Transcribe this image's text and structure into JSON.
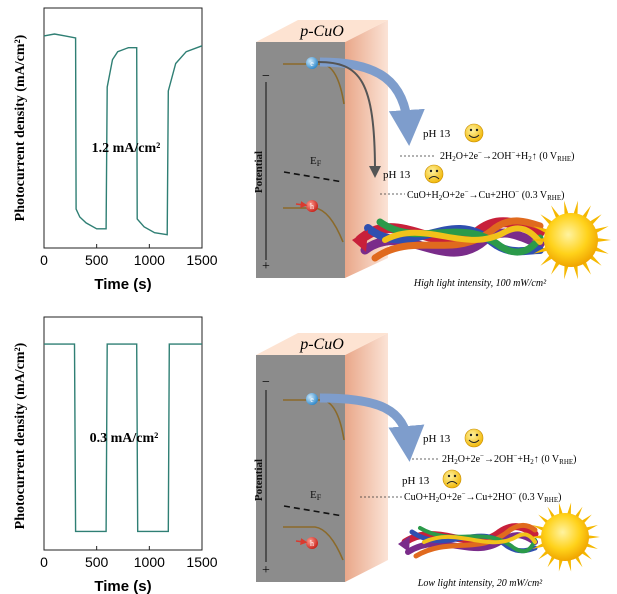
{
  "colors": {
    "trace": "#2f7f74",
    "band": "#8b6a2a",
    "arrow": "#7e9dcc",
    "panel_front": "#8a8a8a",
    "panel_side": "#f0b89a",
    "electron": "#4aa3df",
    "hole": "#d93a2f",
    "sun": "#f5b800"
  },
  "top_panel": {
    "photocurrent_label": "1.2 mA/cm²",
    "material": "p-CuO",
    "fermi_label": "E_F",
    "potential_label": "Potential",
    "minus_sign": "−",
    "plus_sign": "+",
    "electron_label": "e",
    "hole_label": "h",
    "ph_good": "pH 13",
    "ph_bad": "pH 13",
    "reaction_good": "2H₂O+2e⁻→2OH⁻+H₂↑ (0 V_RHE)",
    "reaction_bad": "CuO+H₂O+2e⁻→Cu+2HO⁻ (0.3 V_RHE)",
    "light_label": "High light intensity, 100 mW/cm²",
    "smiley_good": "happy-face-icon",
    "smiley_bad": "sad-face-icon"
  },
  "bottom_panel": {
    "photocurrent_label": "0.3 mA/cm²",
    "material": "p-CuO",
    "fermi_label": "E_F",
    "potential_label": "Potential",
    "minus_sign": "−",
    "plus_sign": "+",
    "electron_label": "e",
    "hole_label": "h",
    "ph_good": "pH 13",
    "ph_bad": "pH 13",
    "reaction_good": "2H₂O+2e⁻→2OH⁻+H₂↑ (0 V_RHE)",
    "reaction_bad": "CuO+H₂O+2e⁻→Cu+2HO⁻ (0.3 V_RHE)",
    "light_label": "Low light intensity, 20 mW/cm²",
    "smiley_good": "happy-face-icon",
    "smiley_bad": "sad-face-icon"
  },
  "chart_data": [
    {
      "type": "line",
      "xlabel": "Time (s)",
      "ylabel": "Photocurrent density (mA/cm²)",
      "xlim": [
        0,
        1500
      ],
      "x_ticks": [
        0,
        500,
        1000,
        1500
      ],
      "y_ticks_shown": false,
      "annotation": "1.2 mA/cm²",
      "series": [
        {
          "points": [
            [
              0,
              0.98
            ],
            [
              100,
              0.99
            ],
            [
              200,
              0.98
            ],
            [
              300,
              0.97
            ],
            [
              305,
              0.1
            ],
            [
              340,
              0.06
            ],
            [
              400,
              0.03
            ],
            [
              500,
              0.0
            ],
            [
              590,
              0.0
            ],
            [
              600,
              0.72
            ],
            [
              650,
              0.86
            ],
            [
              700,
              0.9
            ],
            [
              800,
              0.92
            ],
            [
              880,
              0.92
            ],
            [
              885,
              0.05
            ],
            [
              950,
              0.01
            ],
            [
              1050,
              -0.02
            ],
            [
              1170,
              -0.03
            ],
            [
              1180,
              0.7
            ],
            [
              1250,
              0.84
            ],
            [
              1350,
              0.9
            ],
            [
              1500,
              0.93
            ]
          ]
        }
      ]
    },
    {
      "type": "line",
      "xlabel": "Time (s)",
      "ylabel": "Photocurrent density (mA/cm²)",
      "xlim": [
        0,
        1500
      ],
      "x_ticks": [
        0,
        500,
        1000,
        1500
      ],
      "y_ticks_shown": false,
      "annotation": "0.3 mA/cm²",
      "series": [
        {
          "points": [
            [
              0,
              0.98
            ],
            [
              290,
              0.98
            ],
            [
              300,
              0.0
            ],
            [
              590,
              0.0
            ],
            [
              600,
              0.98
            ],
            [
              880,
              0.98
            ],
            [
              890,
              0.0
            ],
            [
              1180,
              0.0
            ],
            [
              1190,
              0.98
            ],
            [
              1500,
              0.98
            ]
          ]
        }
      ]
    }
  ]
}
